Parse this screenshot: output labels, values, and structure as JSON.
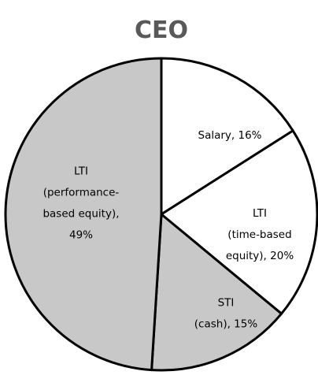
{
  "chart_data": {
    "type": "pie",
    "title": "CEO",
    "values": [
      16,
      20,
      15,
      49
    ],
    "value_labels": [
      [
        "Salary, 16%"
      ],
      [
        "LTI",
        "(time-based",
        "equity), 20%"
      ],
      [
        "STI",
        "(cash), 15%"
      ],
      [
        "LTI",
        "(performance-",
        "based equity),",
        "49%"
      ]
    ],
    "colors": [
      "#ffffff",
      "#ffffff",
      "#c8c8c8",
      "#c8c8c8"
    ]
  }
}
